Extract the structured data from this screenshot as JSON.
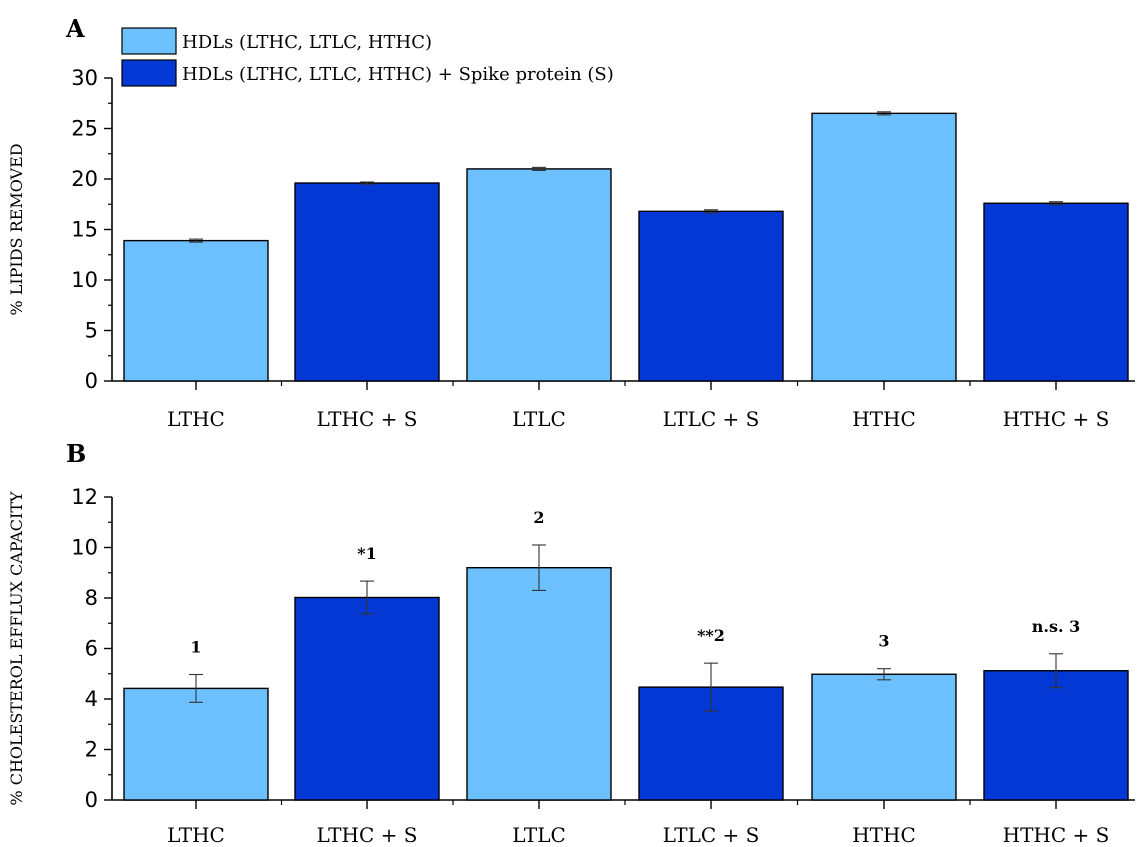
{
  "legend": {
    "items": [
      {
        "label": "HDLs (LTHC, LTLC, HTHC)",
        "color": "#6cc0fd"
      },
      {
        "label": "HDLs (LTHC, LTLC, HTHC) + Spike protein (S)",
        "color": "#0438d4"
      }
    ]
  },
  "chart_data": [
    {
      "panel": "A",
      "type": "bar",
      "categories": [
        "LTHC",
        "LTHC + S",
        "LTLC",
        "LTLC + S",
        "HTHC",
        "HTHC + S"
      ],
      "values": [
        13.9,
        19.6,
        21.0,
        16.8,
        26.5,
        17.6
      ],
      "errors": [
        0.15,
        0.1,
        0.15,
        0.15,
        0.15,
        0.15
      ],
      "bar_colors": [
        "#6cc0fd",
        "#0438d4",
        "#6cc0fd",
        "#0438d4",
        "#6cc0fd",
        "#0438d4"
      ],
      "ylabel": "% LIPIDS REMOVED",
      "xlabel": "",
      "ylim": [
        0,
        30
      ],
      "yticks": [
        0,
        5,
        10,
        15,
        20,
        25,
        30
      ],
      "annotations": [
        "",
        "",
        "",
        "",
        "",
        ""
      ]
    },
    {
      "panel": "B",
      "type": "bar",
      "categories": [
        "LTHC",
        "LTHC + S",
        "LTLC",
        "LTLC + S",
        "HTHC",
        "HTHC + S"
      ],
      "values": [
        4.42,
        8.02,
        9.2,
        4.47,
        4.98,
        5.12
      ],
      "errors": [
        0.55,
        0.65,
        0.9,
        0.95,
        0.22,
        0.67
      ],
      "bar_colors": [
        "#6cc0fd",
        "#0438d4",
        "#6cc0fd",
        "#0438d4",
        "#6cc0fd",
        "#0438d4"
      ],
      "ylabel": "% CHOLESTEROL EFFLUX CAPACITY",
      "xlabel": "",
      "ylim": [
        0,
        12
      ],
      "yticks": [
        0,
        2,
        4,
        6,
        8,
        10,
        12
      ],
      "annotations": [
        "1",
        "*1",
        "2",
        "**2",
        "3",
        "n.s. 3"
      ]
    }
  ]
}
